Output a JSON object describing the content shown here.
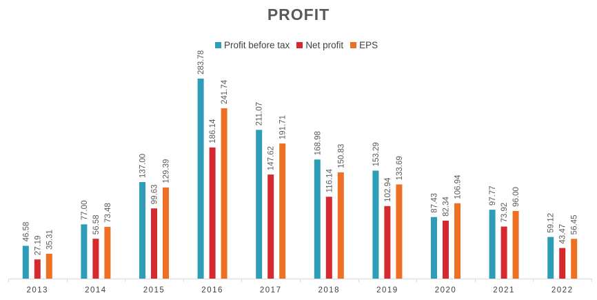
{
  "chart_data": {
    "type": "bar",
    "title": "PROFIT",
    "categories": [
      "2013",
      "2014",
      "2015",
      "2016",
      "2017",
      "2018",
      "2019",
      "2020",
      "2021",
      "2022"
    ],
    "series": [
      {
        "name": "Profit before tax",
        "color": "#2E9EB8",
        "values": [
          46.58,
          77.0,
          137.0,
          283.78,
          211.07,
          168.98,
          153.29,
          87.43,
          97.77,
          59.12
        ],
        "labels": [
          "46.58",
          "77.00",
          "137.00",
          "283.78",
          "211.07",
          "168.98",
          "153.29",
          "87.43",
          "97.77",
          "59.12"
        ]
      },
      {
        "name": "Net profit",
        "color": "#D42A2F",
        "values": [
          27.19,
          56.58,
          99.63,
          186.14,
          147.62,
          116.14,
          102.94,
          82.34,
          73.92,
          43.47
        ],
        "labels": [
          "27.19",
          "56.58",
          "99.63",
          "186.14",
          "147.62",
          "116.14",
          "102.94",
          "82.34",
          "73.92",
          "43.47"
        ]
      },
      {
        "name": "EPS",
        "color": "#EE7024",
        "values": [
          35.31,
          73.48,
          129.39,
          241.74,
          191.71,
          150.83,
          133.69,
          106.94,
          96.0,
          56.45
        ],
        "labels": [
          "35.31",
          "73.48",
          "129.39",
          "241.74",
          "191.71",
          "150.83",
          "133.69",
          "106.94",
          "96.00",
          "56.45"
        ]
      }
    ],
    "ylim": [
      0,
      283.78
    ],
    "legend": "top-center",
    "grid": false
  }
}
